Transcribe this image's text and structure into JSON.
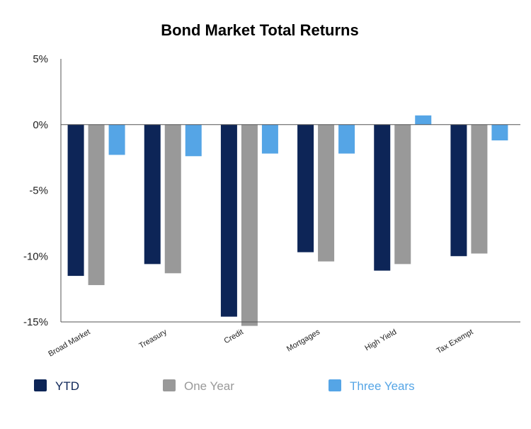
{
  "chart_data": {
    "type": "bar",
    "title": "Bond Market Total Returns",
    "xlabel": "",
    "ylabel": "",
    "categories": [
      "Broad Market",
      "Treasury",
      "Credit",
      "Mortgages",
      "High Yield",
      "Tax Exempt"
    ],
    "series": [
      {
        "name": "YTD",
        "color": "#0d2557",
        "values": [
          -11.5,
          -10.6,
          -14.6,
          -9.7,
          -11.1,
          -10.0
        ]
      },
      {
        "name": "One Year",
        "color": "#999999",
        "values": [
          -12.2,
          -11.3,
          -15.3,
          -10.4,
          -10.6,
          -9.8
        ]
      },
      {
        "name": "Three Years",
        "color": "#55a5e6",
        "values": [
          -2.3,
          -2.4,
          -2.2,
          -2.2,
          0.7,
          -1.2
        ]
      }
    ],
    "ylim": [
      -15,
      5
    ],
    "yticks": [
      5,
      0,
      -5,
      -10,
      -15
    ],
    "ytick_labels": [
      "5%",
      "0%",
      "-5%",
      "-10%",
      "-15%"
    ],
    "grid": false,
    "legend_position": "bottom"
  }
}
